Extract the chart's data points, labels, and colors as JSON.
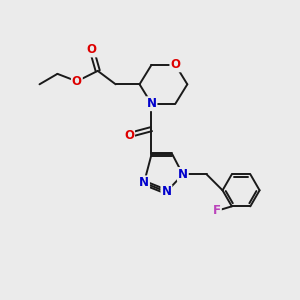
{
  "background_color": "#ebebeb",
  "bond_color": "#1a1a1a",
  "bond_lw": 1.4,
  "atom_colors": {
    "O": "#dd0000",
    "N": "#0000cc",
    "F": "#bb44bb",
    "C": "#1a1a1a"
  },
  "font_size_atom": 8.5,
  "fig_size": [
    3.0,
    3.0
  ],
  "dpi": 100
}
